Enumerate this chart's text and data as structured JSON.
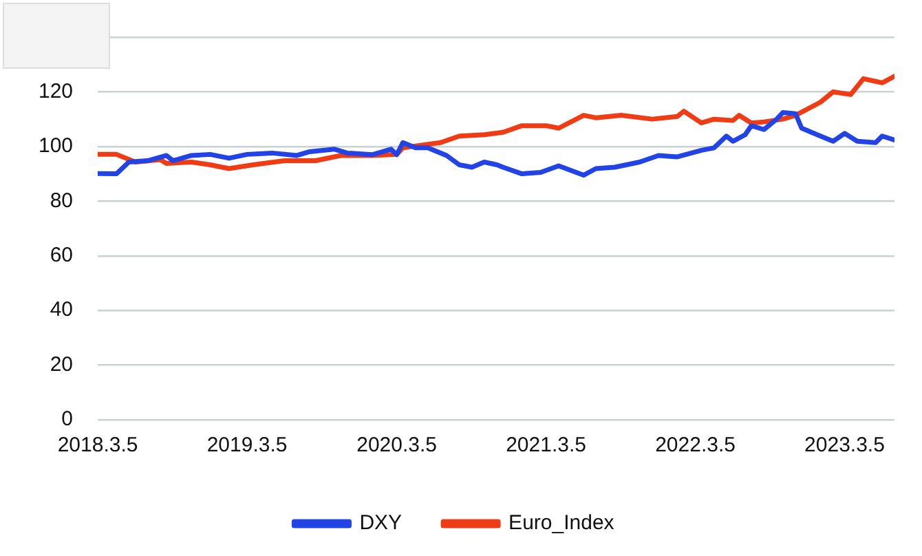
{
  "chart_data": {
    "type": "line",
    "xlim": [
      "2018-03-05",
      "2023-07-05"
    ],
    "xticks": [
      {
        "value": "2018-03-05",
        "label": "2018.3.5"
      },
      {
        "value": "2019-03-05",
        "label": "2019.3.5"
      },
      {
        "value": "2020-03-05",
        "label": "2020.3.5"
      },
      {
        "value": "2021-03-05",
        "label": "2021.3.5"
      },
      {
        "value": "2022-03-05",
        "label": "2022.3.5"
      },
      {
        "value": "2023-03-05",
        "label": "2023.3.5"
      }
    ],
    "ylim": [
      0,
      140
    ],
    "yticks": [
      0,
      20,
      40,
      60,
      80,
      100,
      120,
      {
        "value": 140,
        "label": null
      }
    ],
    "grid": "y",
    "legend": "bottom",
    "marker": "none",
    "line_style": "solid",
    "series": [
      {
        "name": "DXY",
        "color": "#2244e6",
        "x": [
          "2018-03-05",
          "2018-04-20",
          "2018-05-20",
          "2018-07-05",
          "2018-08-20",
          "2018-09-05",
          "2018-10-20",
          "2018-12-05",
          "2019-01-20",
          "2019-03-05",
          "2019-05-05",
          "2019-07-05",
          "2019-08-05",
          "2019-10-05",
          "2019-11-05",
          "2020-01-05",
          "2020-02-20",
          "2020-03-05",
          "2020-03-20",
          "2020-04-20",
          "2020-05-20",
          "2020-07-05",
          "2020-08-05",
          "2020-09-05",
          "2020-10-05",
          "2020-11-05",
          "2020-11-20",
          "2021-01-05",
          "2021-02-20",
          "2021-04-05",
          "2021-06-05",
          "2021-07-05",
          "2021-08-20",
          "2021-10-20",
          "2021-12-05",
          "2022-01-20",
          "2022-03-20",
          "2022-04-20",
          "2022-05-20",
          "2022-06-05",
          "2022-07-05",
          "2022-07-20",
          "2022-08-20",
          "2022-09-20",
          "2022-10-05",
          "2022-11-05",
          "2022-11-20",
          "2023-01-05",
          "2023-02-05",
          "2023-03-05",
          "2023-04-05",
          "2023-05-20",
          "2023-06-05",
          "2023-07-05"
        ],
        "values": [
          90.1,
          90,
          94.3,
          94.8,
          96.7,
          94.8,
          96.7,
          97.1,
          95.7,
          97.1,
          97.6,
          96.7,
          98.1,
          99,
          97.6,
          97,
          99,
          97,
          101.4,
          99.5,
          99.5,
          96.7,
          93.3,
          92.4,
          94.3,
          93.3,
          92.4,
          90,
          90.5,
          92.9,
          89.5,
          91.9,
          92.4,
          94.3,
          96.7,
          96.2,
          98.6,
          99.5,
          103.8,
          101.9,
          104.3,
          107.6,
          106.2,
          110,
          112.4,
          112,
          106.7,
          103.8,
          101.9,
          104.8,
          101.9,
          101.4,
          103.8,
          102.4
        ]
      },
      {
        "name": "Euro_Index",
        "color": "#f03c14",
        "x": [
          "2018-03-05",
          "2018-04-20",
          "2018-06-05",
          "2018-08-05",
          "2018-08-20",
          "2018-10-20",
          "2018-12-05",
          "2019-01-20",
          "2019-03-20",
          "2019-06-05",
          "2019-08-20",
          "2019-10-20",
          "2020-01-05",
          "2020-03-05",
          "2020-03-20",
          "2020-05-05",
          "2020-06-20",
          "2020-08-05",
          "2020-10-05",
          "2020-11-20",
          "2021-01-05",
          "2021-03-05",
          "2021-04-05",
          "2021-06-05",
          "2021-07-05",
          "2021-09-05",
          "2021-11-20",
          "2022-01-20",
          "2022-02-05",
          "2022-03-20",
          "2022-04-20",
          "2022-06-05",
          "2022-06-20",
          "2022-07-20",
          "2022-08-20",
          "2022-10-05",
          "2022-11-05",
          "2023-01-05",
          "2023-02-05",
          "2023-03-20",
          "2023-04-20",
          "2023-06-05",
          "2023-07-05"
        ],
        "values": [
          97.1,
          97.1,
          94.3,
          95.2,
          93.8,
          94.3,
          93.3,
          91.9,
          93.3,
          94.8,
          94.8,
          96.7,
          96.7,
          97.1,
          99.5,
          100.5,
          101.4,
          103.8,
          104.3,
          105.2,
          107.6,
          107.6,
          106.7,
          111.4,
          110.5,
          111.4,
          110,
          111,
          112.9,
          108.6,
          110,
          109.5,
          111.4,
          108.6,
          109,
          110,
          111.4,
          116.2,
          120,
          119,
          124.8,
          123.3,
          125.7
        ]
      }
    ]
  }
}
